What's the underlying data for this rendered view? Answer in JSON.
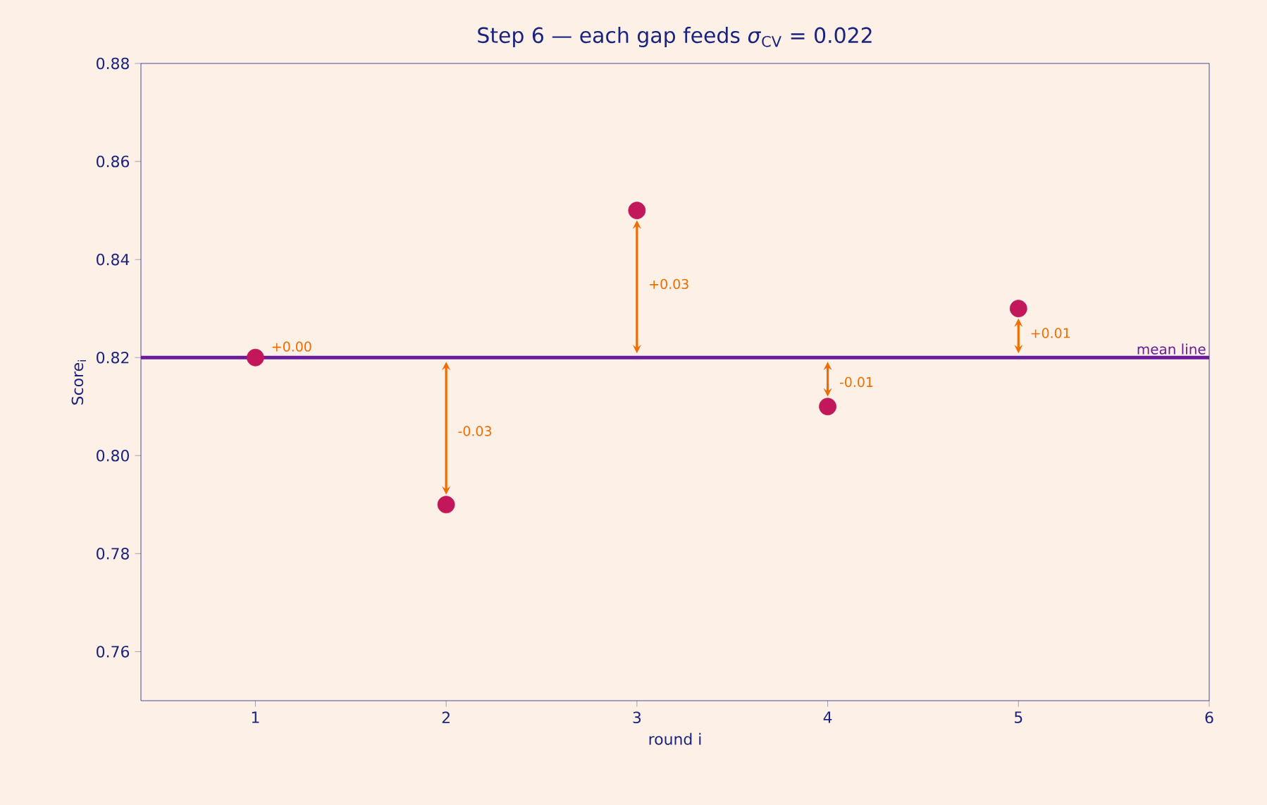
{
  "chart_data": {
    "type": "scatter",
    "title": "Step 6 — each gap feeds *σ*$_{CV}$ = 0.022",
    "xlabel": "round i",
    "ylabel": "Score$_{i}$",
    "x": [
      1,
      2,
      3,
      4,
      5
    ],
    "series": [
      {
        "color": "#c2185b",
        "values": [
          0.82,
          0.79,
          0.85,
          0.81,
          0.83
        ]
      }
    ],
    "marker": "circle",
    "xlim": [
      0.4,
      6
    ],
    "ylim": [
      0.75,
      0.88
    ],
    "xticks": [
      1,
      2,
      3,
      4,
      5,
      6
    ],
    "yticks": [
      0.76,
      0.78,
      {
        "value": 0.8,
        "label": "0.80"
      },
      0.82,
      0.84,
      0.86,
      0.88
    ],
    "ref_lines": [
      {
        "axis": "y",
        "value": 0.82,
        "label": "mean line",
        "color": "#6a1b9a"
      }
    ],
    "annotations": [
      "+0.00",
      "-0.03",
      "+0.03",
      "-0.01",
      "+0.01"
    ]
  }
}
